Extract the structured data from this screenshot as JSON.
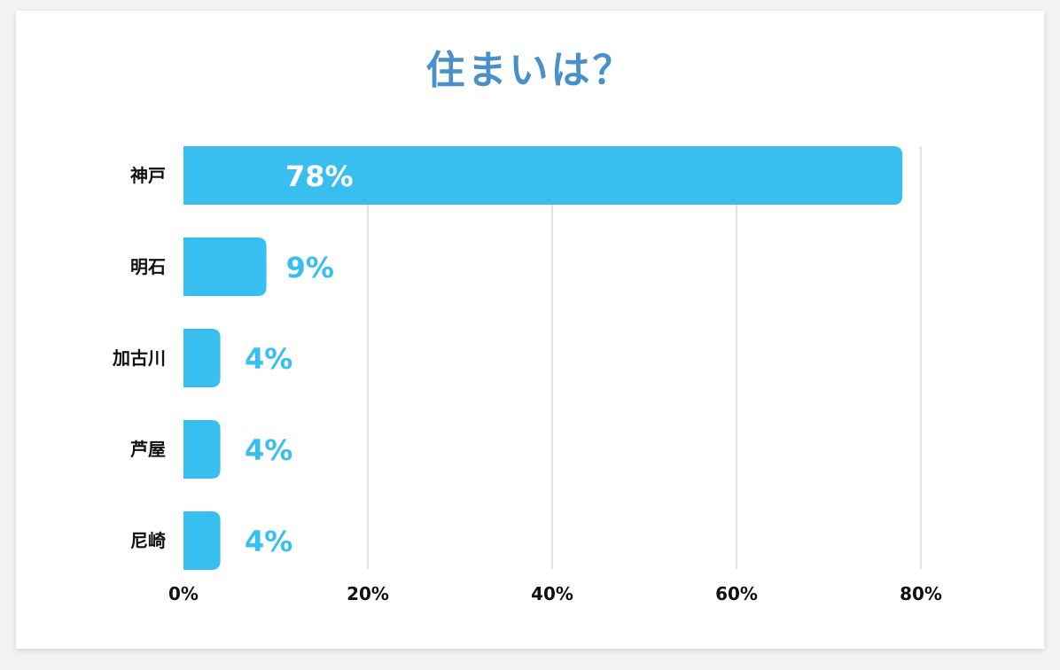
{
  "chart_data": {
    "type": "bar",
    "orientation": "horizontal",
    "title": "住まいは？",
    "categories": [
      "神戸",
      "明石",
      "加古川",
      "芦屋",
      "尼崎"
    ],
    "values": [
      78,
      9,
      4,
      4,
      4
    ],
    "value_labels": [
      "78%",
      "9%",
      "4%",
      "4%",
      "4%"
    ],
    "xlim": [
      0,
      80
    ],
    "x_ticks": [
      0,
      20,
      40,
      60,
      80
    ],
    "x_tick_labels": [
      "0%",
      "20%",
      "40%",
      "60%",
      "80%"
    ],
    "grid": true,
    "colors": {
      "bar": "#38bff0",
      "title": "#4a90c8",
      "label_inside": "#ffffff",
      "label_outside": "#38bff0",
      "grid": "#d9d9d9"
    }
  }
}
